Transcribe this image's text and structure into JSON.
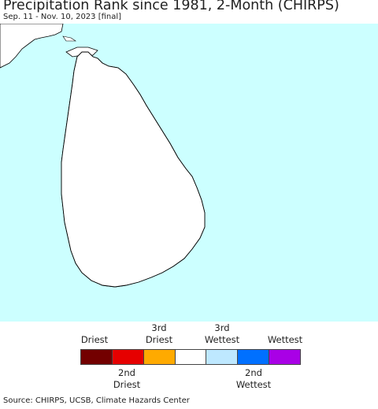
{
  "title": "Precipitation Rank since 1981, 2-Month (CHIRPS)",
  "subtitle": "Sep. 11 - Nov. 10, 2023 [final]",
  "colors": {
    "ocean": "#ccffff",
    "land": "#ffffff",
    "boundary": "#555555",
    "coast": "#000000"
  },
  "legend": {
    "top_labels": [
      {
        "text": "Driest"
      },
      {
        "text": "3rd\nDriest"
      },
      {
        "text": "3rd\nWettest"
      },
      {
        "text": "Wettest"
      }
    ],
    "bottom_labels": [
      {
        "text": "2nd\nDriest"
      },
      {
        "text": "2nd\nWettest"
      }
    ],
    "swatches": [
      {
        "name": "driest",
        "color": "#730000"
      },
      {
        "name": "2nd-driest",
        "color": "#e60000"
      },
      {
        "name": "3rd-driest",
        "color": "#ffaa00"
      },
      {
        "name": "normal",
        "color": "#ffffff"
      },
      {
        "name": "3rd-wettest",
        "color": "#bee8ff"
      },
      {
        "name": "2nd-wettest",
        "color": "#0070ff"
      },
      {
        "name": "wettest",
        "color": "#a900e6"
      }
    ]
  },
  "source": "Source: CHIRPS, UCSB, Climate Hazards Center"
}
